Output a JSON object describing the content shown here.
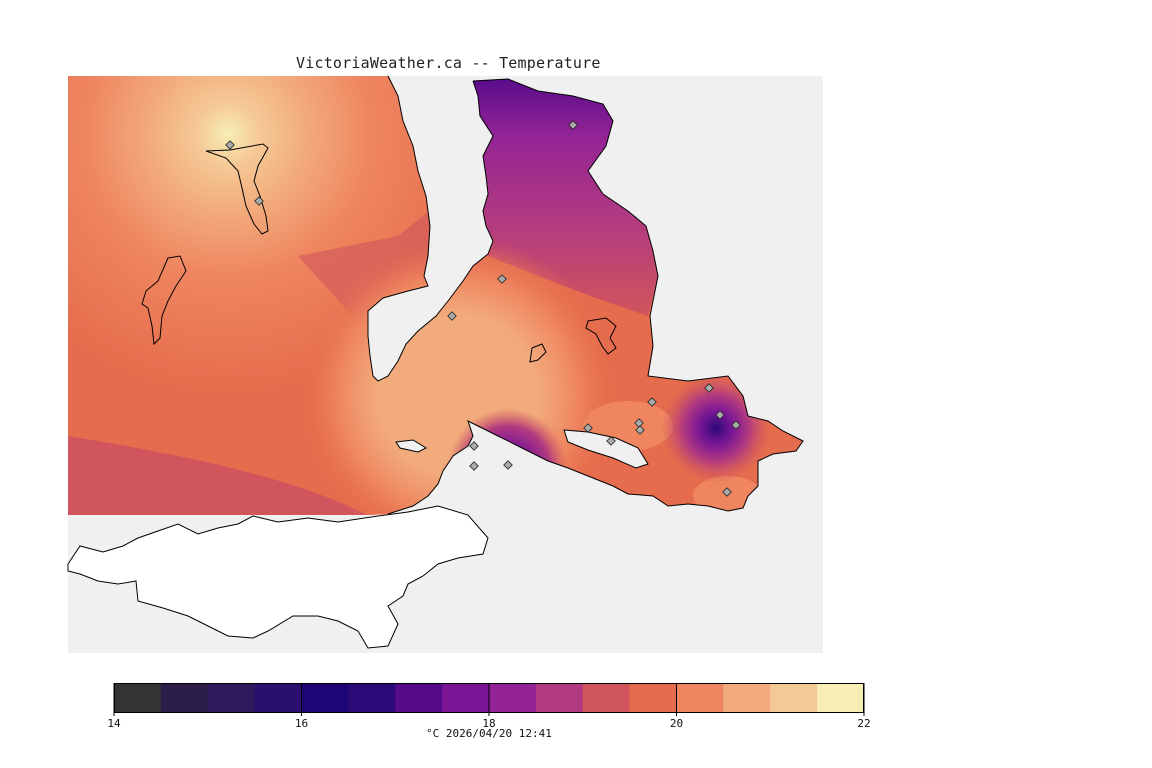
{
  "title": "VictoriaWeather.ca -- Temperature",
  "map": {
    "layer": "temperature-interpolation",
    "colors": {
      "water": "#f0f0f0",
      "land_outside": "#ffffff",
      "coast": "#000000",
      "station": "#aaaaaa"
    },
    "station_count": 20
  },
  "colorbar": {
    "min": 14,
    "max": 22,
    "step": 0.5,
    "tick_labels": [
      "14",
      "16",
      "18",
      "20",
      "22"
    ],
    "colors": [
      "#333333",
      "#2b1e4a",
      "#2e1a5c",
      "#2a0f6e",
      "#1e0575",
      "#2c0a78",
      "#560b8a",
      "#7a1696",
      "#932395",
      "#b23a80",
      "#d1555d",
      "#e56c4c",
      "#ef8660",
      "#f2ab7c",
      "#f5c996",
      "#f7eeb5"
    ]
  },
  "caption": "°C  2026/04/20 12:41"
}
